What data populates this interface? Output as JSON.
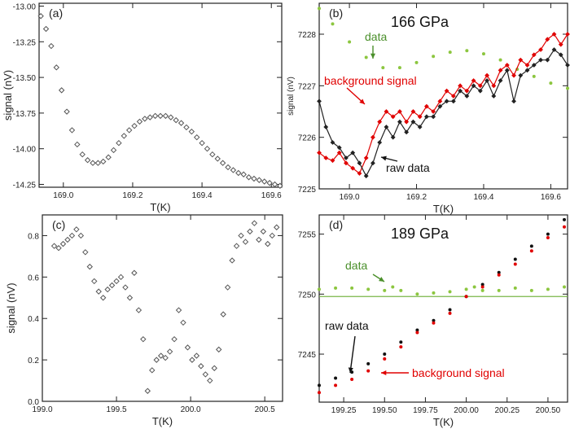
{
  "figure": {
    "panels": [
      "(a)",
      "(b)",
      "(c)",
      "(d)"
    ]
  },
  "chart_data": [
    {
      "type": "scatter",
      "panel": "(a)",
      "xlabel": "T(K)",
      "ylabel": "signal (nV)",
      "xlim": [
        168.93,
        169.63
      ],
      "ylim": [
        -14.27,
        -12.98
      ],
      "xticks": [
        169.0,
        169.2,
        169.4,
        169.6
      ],
      "xtick_labels": [
        "169.0",
        "169.2",
        "169.4",
        "169.6"
      ],
      "yticks": [
        -13.0,
        -13.25,
        -13.5,
        -13.75,
        -14.0,
        -14.25
      ],
      "ytick_labels": [
        "-13.00",
        "-13.25",
        "-13.50",
        "-13.75",
        "-14.00",
        "-14.25"
      ],
      "series": [
        {
          "color": "#555555",
          "marker": "diamond",
          "x": [
            168.935,
            168.95,
            168.965,
            168.98,
            168.995,
            169.01,
            169.025,
            169.04,
            169.055,
            169.07,
            169.085,
            169.1,
            169.115,
            169.13,
            169.145,
            169.16,
            169.175,
            169.19,
            169.205,
            169.22,
            169.235,
            169.25,
            169.265,
            169.28,
            169.295,
            169.31,
            169.325,
            169.34,
            169.355,
            169.37,
            169.385,
            169.4,
            169.415,
            169.43,
            169.445,
            169.46,
            169.475,
            169.49,
            169.505,
            169.52,
            169.535,
            169.55,
            169.565,
            169.58,
            169.595,
            169.61,
            169.625
          ],
          "y": [
            -13.07,
            -13.16,
            -13.28,
            -13.43,
            -13.59,
            -13.74,
            -13.87,
            -13.97,
            -14.04,
            -14.08,
            -14.1,
            -14.1,
            -14.09,
            -14.06,
            -14.01,
            -13.96,
            -13.91,
            -13.87,
            -13.84,
            -13.81,
            -13.79,
            -13.78,
            -13.77,
            -13.77,
            -13.77,
            -13.78,
            -13.8,
            -13.82,
            -13.85,
            -13.88,
            -13.92,
            -13.96,
            -14.0,
            -14.04,
            -14.07,
            -14.1,
            -14.13,
            -14.15,
            -14.17,
            -14.18,
            -14.2,
            -14.21,
            -14.22,
            -14.23,
            -14.24,
            -14.25,
            -14.26
          ]
        }
      ]
    },
    {
      "type": "line",
      "panel": "(b)",
      "title": "166 GPa",
      "xlabel": "T(K)",
      "ylabel": "signal (nV)",
      "xlim": [
        168.91,
        169.65
      ],
      "ylim": [
        7225,
        7228.6
      ],
      "xticks": [
        169.0,
        169.2,
        169.4,
        169.6
      ],
      "xtick_labels": [
        "169.0",
        "169.2",
        "169.4",
        "169.6"
      ],
      "yticks": [
        7225,
        7226,
        7227,
        7228
      ],
      "ytick_labels": [
        "7225",
        "7226",
        "7227",
        "7228"
      ],
      "annotations": [
        "data",
        "background signal",
        "raw  data"
      ],
      "series": [
        {
          "name": "data",
          "color": "#8cc63f",
          "marker": "dot",
          "x": [
            168.91,
            168.95,
            169.0,
            169.05,
            169.1,
            169.15,
            169.2,
            169.25,
            169.3,
            169.35,
            169.4,
            169.45,
            169.5,
            169.55,
            169.6,
            169.65
          ],
          "y": [
            7228.5,
            7228.2,
            7227.85,
            7227.55,
            7227.35,
            7227.35,
            7227.45,
            7227.57,
            7227.65,
            7227.68,
            7227.62,
            7227.5,
            7227.32,
            7227.18,
            7227.05,
            7226.95
          ]
        },
        {
          "name": "background signal",
          "color": "#e00000",
          "marker": "diamond",
          "x": [
            168.91,
            168.93,
            168.95,
            168.97,
            168.99,
            169.01,
            169.03,
            169.05,
            169.07,
            169.09,
            169.11,
            169.13,
            169.15,
            169.17,
            169.19,
            169.21,
            169.23,
            169.25,
            169.27,
            169.29,
            169.31,
            169.33,
            169.35,
            169.37,
            169.39,
            169.41,
            169.43,
            169.45,
            169.47,
            169.49,
            169.51,
            169.53,
            169.55,
            169.57,
            169.59,
            169.61,
            169.63,
            169.65
          ],
          "y": [
            7225.7,
            7225.6,
            7225.55,
            7225.7,
            7225.5,
            7225.4,
            7225.3,
            7225.6,
            7226.0,
            7226.3,
            7226.5,
            7226.4,
            7226.5,
            7226.3,
            7226.5,
            7226.4,
            7226.6,
            7226.5,
            7226.7,
            7226.9,
            7226.8,
            7227.0,
            7226.9,
            7227.1,
            7227.0,
            7227.2,
            7227.0,
            7227.3,
            7227.4,
            7227.2,
            7227.5,
            7227.4,
            7227.6,
            7227.7,
            7227.9,
            7228.0,
            7227.8,
            7228.0
          ]
        },
        {
          "name": "raw  data",
          "color": "#222222",
          "marker": "diamond",
          "x": [
            168.91,
            168.93,
            168.95,
            168.97,
            168.99,
            169.01,
            169.03,
            169.05,
            169.07,
            169.09,
            169.11,
            169.13,
            169.15,
            169.17,
            169.19,
            169.21,
            169.23,
            169.25,
            169.27,
            169.29,
            169.31,
            169.33,
            169.35,
            169.37,
            169.39,
            169.41,
            169.43,
            169.45,
            169.47,
            169.49,
            169.51,
            169.53,
            169.55,
            169.57,
            169.59,
            169.61,
            169.63,
            169.65
          ],
          "y": [
            7226.7,
            7226.2,
            7225.9,
            7225.8,
            7225.6,
            7225.7,
            7225.5,
            7225.25,
            7225.5,
            7225.9,
            7226.2,
            7226.0,
            7226.3,
            7226.1,
            7226.3,
            7226.2,
            7226.4,
            7226.4,
            7226.6,
            7226.7,
            7226.7,
            7226.9,
            7226.8,
            7227.0,
            7226.9,
            7227.1,
            7226.8,
            7227.1,
            7227.3,
            7226.7,
            7227.2,
            7227.3,
            7227.4,
            7227.5,
            7227.5,
            7227.7,
            7227.6,
            7227.4
          ]
        }
      ]
    },
    {
      "type": "scatter",
      "panel": "(c)",
      "xlabel": "T(K)",
      "ylabel": "signal (nV)",
      "xlim": [
        199.0,
        200.62
      ],
      "ylim": [
        0.0,
        0.9
      ],
      "xticks": [
        199.0,
        199.5,
        200.0,
        200.5
      ],
      "xtick_labels": [
        "199.0",
        "199.5",
        "200.0",
        "200.5"
      ],
      "yticks": [
        0.0,
        0.2,
        0.4,
        0.6,
        0.8
      ],
      "ytick_labels": [
        "0.0",
        "0.2",
        "0.4",
        "0.6",
        "0.8"
      ],
      "series": [
        {
          "color": "#555555",
          "marker": "diamond",
          "x": [
            199.08,
            199.11,
            199.14,
            199.17,
            199.2,
            199.23,
            199.26,
            199.29,
            199.32,
            199.35,
            199.38,
            199.41,
            199.44,
            199.47,
            199.5,
            199.53,
            199.56,
            199.59,
            199.62,
            199.65,
            199.68,
            199.71,
            199.74,
            199.77,
            199.8,
            199.83,
            199.86,
            199.89,
            199.92,
            199.95,
            199.98,
            200.01,
            200.04,
            200.07,
            200.1,
            200.13,
            200.16,
            200.19,
            200.22,
            200.25,
            200.28,
            200.31,
            200.34,
            200.37,
            200.4,
            200.43,
            200.46,
            200.49,
            200.52,
            200.55,
            200.58
          ],
          "y": [
            0.75,
            0.74,
            0.76,
            0.78,
            0.8,
            0.83,
            0.8,
            0.72,
            0.65,
            0.58,
            0.53,
            0.5,
            0.54,
            0.56,
            0.58,
            0.6,
            0.55,
            0.5,
            0.62,
            0.44,
            0.3,
            0.05,
            0.15,
            0.2,
            0.22,
            0.21,
            0.24,
            0.3,
            0.44,
            0.38,
            0.26,
            0.2,
            0.22,
            0.17,
            0.13,
            0.1,
            0.16,
            0.25,
            0.42,
            0.55,
            0.68,
            0.75,
            0.8,
            0.77,
            0.82,
            0.86,
            0.78,
            0.82,
            0.76,
            0.8,
            0.84
          ]
        }
      ]
    },
    {
      "type": "line",
      "panel": "(d)",
      "title": "189 GPa",
      "xlabel": "T(K)",
      "xlim": [
        199.1,
        200.62
      ],
      "ylim": [
        7241,
        7256.6
      ],
      "xticks": [
        199.25,
        199.5,
        199.75,
        200.0,
        200.25,
        200.5
      ],
      "xtick_labels": [
        "199.25",
        "199.50",
        "199.75",
        "200.00",
        "200.25",
        "200.50"
      ],
      "yticks": [
        7245,
        7250,
        7255
      ],
      "ytick_labels": [
        "7245",
        "7250",
        "7255"
      ],
      "annotations": [
        "data",
        "raw  data",
        "background signal"
      ],
      "series": [
        {
          "name": "data",
          "color": "#8cc63f",
          "marker": "dot",
          "x": [
            199.1,
            199.2,
            199.3,
            199.4,
            199.5,
            199.55,
            199.6,
            199.7,
            199.8,
            199.9,
            200.0,
            200.05,
            200.1,
            200.2,
            200.3,
            200.4,
            200.5,
            200.6
          ],
          "y": [
            7250.4,
            7250.5,
            7250.5,
            7250.4,
            7250.3,
            7250.6,
            7250.3,
            7250.0,
            7250.1,
            7250.2,
            7250.4,
            7250.6,
            7250.3,
            7250.3,
            7250.5,
            7250.3,
            7250.4,
            7250.6
          ]
        },
        {
          "name": "raw  data",
          "color": "#111111",
          "marker": "dot",
          "x": [
            199.1,
            199.2,
            199.3,
            199.4,
            199.5,
            199.6,
            199.7,
            199.8,
            199.9,
            200.0,
            200.1,
            200.2,
            200.3,
            200.4,
            200.5,
            200.6
          ],
          "y": [
            7242.4,
            7243.0,
            7243.5,
            7244.2,
            7245.0,
            7246.0,
            7247.0,
            7247.8,
            7248.7,
            7249.8,
            7250.8,
            7251.8,
            7252.9,
            7254.0,
            7255.0,
            7256.2
          ]
        },
        {
          "name": "background signal",
          "color": "#e00000",
          "marker": "dot",
          "x": [
            199.1,
            199.2,
            199.3,
            199.4,
            199.5,
            199.6,
            199.7,
            199.8,
            199.9,
            200.0,
            200.1,
            200.2,
            200.3,
            200.4,
            200.5,
            200.6
          ],
          "y": [
            7241.8,
            7242.4,
            7242.9,
            7243.6,
            7244.6,
            7245.6,
            7246.8,
            7247.6,
            7248.4,
            7249.8,
            7250.6,
            7251.6,
            7252.5,
            7253.6,
            7254.7,
            7255.6
          ]
        }
      ]
    }
  ]
}
